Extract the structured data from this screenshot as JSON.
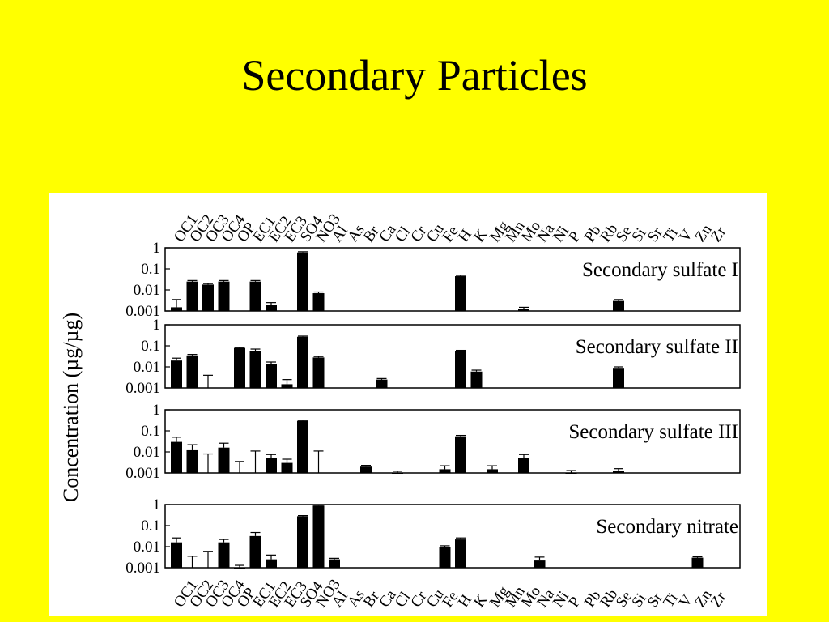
{
  "slide": {
    "title": "Secondary Particles"
  },
  "colors": {
    "background": "#ffff00",
    "panel": "#ffffff",
    "bars": "#000000"
  },
  "chart_data": {
    "type": "bar",
    "log_scale": true,
    "ylim": [
      0.001,
      1
    ],
    "y_ticks": [
      "1",
      "0.1",
      "0.01",
      "0.001"
    ],
    "ylabel": "Concentration (µg/µg)",
    "categories": [
      "OC1",
      "OC2",
      "OC3",
      "OC4",
      "OP",
      "EC1",
      "EC2",
      "EC3",
      "SO4",
      "NO3",
      "Al",
      "As",
      "Br",
      "Ca",
      "Cl",
      "Cr",
      "Cu",
      "Fe",
      "H",
      "K",
      "Mg",
      "Mn",
      "Mo",
      "Na",
      "Ni",
      "P",
      "Pb",
      "Rb",
      "Se",
      "Si",
      "Sr",
      "Ti",
      "V",
      "Zn",
      "Zr"
    ],
    "panels": [
      {
        "name": "Secondary sulfate I",
        "values": [
          0.0015,
          0.025,
          0.018,
          0.025,
          null,
          0.025,
          0.002,
          null,
          0.6,
          0.007,
          null,
          null,
          null,
          null,
          null,
          null,
          null,
          null,
          0.045,
          null,
          null,
          null,
          0.0012,
          null,
          null,
          null,
          null,
          null,
          0.003,
          null,
          null,
          null,
          null,
          null,
          null
        ],
        "errors": [
          0.002,
          0.003,
          0.002,
          0.003,
          null,
          0.003,
          0.0005,
          null,
          0.05,
          0.001,
          null,
          null,
          null,
          null,
          null,
          null,
          null,
          null,
          0.004,
          null,
          null,
          null,
          0.0003,
          null,
          null,
          null,
          null,
          null,
          0.0005,
          null,
          null,
          null,
          null,
          null,
          null
        ]
      },
      {
        "name": "Secondary sulfate II",
        "values": [
          0.02,
          0.035,
          null,
          null,
          0.08,
          0.055,
          0.014,
          0.0015,
          0.27,
          0.028,
          null,
          null,
          null,
          0.0025,
          null,
          null,
          null,
          null,
          0.055,
          0.006,
          null,
          null,
          null,
          null,
          null,
          null,
          null,
          null,
          0.009,
          null,
          null,
          null,
          null,
          null,
          null
        ],
        "errors": [
          0.006,
          0.004,
          0.003,
          null,
          0.005,
          0.015,
          0.003,
          0.001,
          0.02,
          0.003,
          null,
          null,
          null,
          0.0003,
          null,
          null,
          null,
          null,
          0.006,
          0.001,
          null,
          null,
          null,
          null,
          null,
          null,
          null,
          null,
          0.001,
          null,
          null,
          null,
          null,
          null,
          null
        ]
      },
      {
        "name": "Secondary sulfate III",
        "values": [
          0.03,
          0.012,
          null,
          0.016,
          null,
          null,
          0.005,
          0.003,
          0.3,
          null,
          null,
          null,
          0.002,
          null,
          0.001,
          null,
          null,
          0.0015,
          0.055,
          null,
          0.0015,
          null,
          0.005,
          null,
          null,
          0.001,
          null,
          null,
          0.0013,
          null,
          null,
          null,
          null,
          null,
          null
        ],
        "errors": [
          0.02,
          0.01,
          0.007,
          0.01,
          0.0025,
          0.01,
          0.0025,
          0.0015,
          0.02,
          0.01,
          null,
          null,
          0.0003,
          null,
          0.0002,
          null,
          null,
          0.0007,
          0.006,
          null,
          0.0007,
          null,
          0.0025,
          null,
          null,
          0.0003,
          null,
          null,
          0.0003,
          null,
          null,
          null,
          null,
          null,
          null
        ]
      },
      {
        "name": "Secondary nitrate",
        "values": [
          0.016,
          null,
          null,
          0.016,
          0.001,
          0.032,
          0.0025,
          null,
          0.28,
          0.9,
          0.0025,
          null,
          null,
          null,
          null,
          null,
          null,
          0.01,
          0.022,
          null,
          null,
          null,
          null,
          0.0022,
          null,
          null,
          null,
          null,
          null,
          null,
          null,
          null,
          null,
          0.003,
          null
        ],
        "errors": [
          0.01,
          0.0025,
          0.005,
          0.006,
          0.0003,
          0.015,
          0.0015,
          null,
          0.02,
          0.05,
          0.0003,
          null,
          null,
          null,
          null,
          null,
          null,
          0.001,
          0.004,
          null,
          null,
          null,
          null,
          0.001,
          null,
          null,
          null,
          null,
          null,
          null,
          null,
          null,
          null,
          0.0003,
          null
        ]
      }
    ]
  }
}
